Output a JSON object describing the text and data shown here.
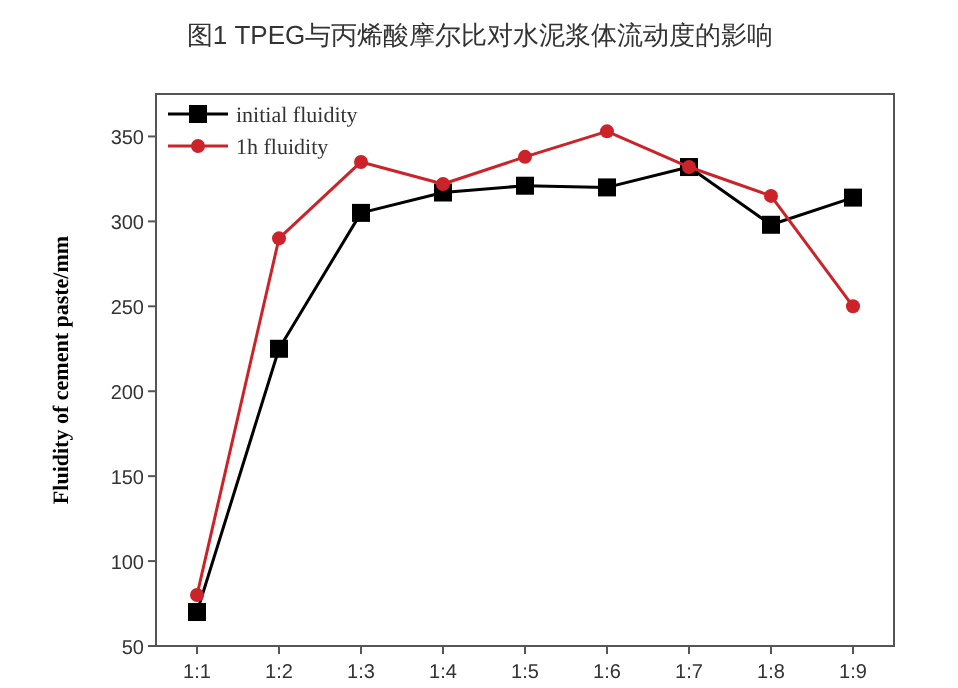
{
  "chart_data": {
    "type": "line",
    "title": "图1 TPEG与丙烯酸摩尔比对水泥浆体流动度的影响",
    "ylabel": "Fluidity of cement paste/mm",
    "categories": [
      "1:1",
      "1:2",
      "1:3",
      "1:4",
      "1:5",
      "1:6",
      "1:7",
      "1:8",
      "1:9"
    ],
    "series": [
      {
        "name": "initial fluidity",
        "color": "#000000",
        "marker": "square",
        "values": [
          70,
          225,
          305,
          317,
          321,
          320,
          332,
          298,
          314
        ]
      },
      {
        "name": "1h fluidity",
        "color": "#cc2229",
        "marker": "circle",
        "values": [
          80,
          290,
          335,
          322,
          338,
          353,
          332,
          315,
          250
        ]
      }
    ],
    "ylim": [
      50,
      375
    ],
    "yticks": [
      50,
      100,
      150,
      200,
      250,
      300,
      350
    ],
    "legend": "top left",
    "grid": false
  }
}
